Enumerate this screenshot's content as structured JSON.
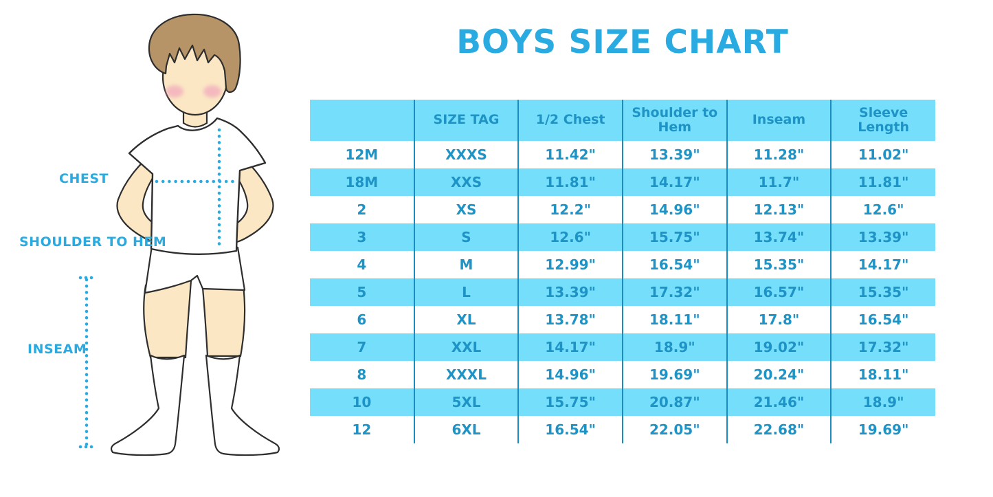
{
  "title": "BOYS SIZE CHART",
  "figure": {
    "labels": {
      "chest": "CHEST",
      "shoulder_to_hem": "SHOULDER TO HEM",
      "inseam": "INSEAM"
    }
  },
  "chart_data": {
    "type": "table",
    "title": "BOYS SIZE CHART",
    "columns": [
      "",
      "SIZE TAG",
      "1/2 Chest",
      "Shoulder to Hem",
      "Inseam",
      "Sleeve Length"
    ],
    "rows": [
      [
        "12M",
        "XXXS",
        "11.42\"",
        "13.39\"",
        "11.28\"",
        "11.02\""
      ],
      [
        "18M",
        "XXS",
        "11.81\"",
        "14.17\"",
        "11.7\"",
        "11.81\""
      ],
      [
        "2",
        "XS",
        "12.2\"",
        "14.96\"",
        "12.13\"",
        "12.6\""
      ],
      [
        "3",
        "S",
        "12.6\"",
        "15.75\"",
        "13.74\"",
        "13.39\""
      ],
      [
        "4",
        "M",
        "12.99\"",
        "16.54\"",
        "15.35\"",
        "14.17\""
      ],
      [
        "5",
        "L",
        "13.39\"",
        "17.32\"",
        "16.57\"",
        "15.35\""
      ],
      [
        "6",
        "XL",
        "13.78\"",
        "18.11\"",
        "17.8\"",
        "16.54\""
      ],
      [
        "7",
        "XXL",
        "14.17\"",
        "18.9\"",
        "19.02\"",
        "17.32\""
      ],
      [
        "8",
        "XXXL",
        "14.96\"",
        "19.69\"",
        "20.24\"",
        "18.11\""
      ],
      [
        "10",
        "5XL",
        "15.75\"",
        "20.87\"",
        "21.46\"",
        "18.9\""
      ],
      [
        "12",
        "6XL",
        "16.54\"",
        "22.05\"",
        "22.68\"",
        "19.69\""
      ]
    ],
    "row_striping": [
      "white",
      "cyan"
    ],
    "legend_position": "none",
    "grid": "vertical-dividers-only"
  },
  "colors": {
    "accent_blue": "#29abe2",
    "table_text": "#1e93c6",
    "row_cyan": "#74defb",
    "divider_blue": "#1b8cbf",
    "hair_brown": "#b79468",
    "skin": "#fbe7c4",
    "blush_pink": "#f1a2bb",
    "outline": "#2e2e2e"
  }
}
